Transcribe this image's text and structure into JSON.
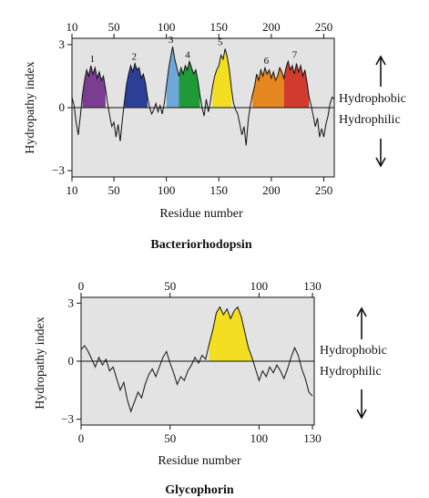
{
  "chart_data": [
    {
      "type": "area",
      "title": "Bacteriorhodopsin",
      "xlabel": "Residue number",
      "ylabel": "Hydropathy index",
      "xlim": [
        10,
        260
      ],
      "ylim": [
        -3.3,
        3.3
      ],
      "x_ticks": [
        10,
        50,
        100,
        150,
        200,
        250
      ],
      "y_ticks": [
        {
          "value": 3,
          "label": "3"
        },
        {
          "value": 0,
          "label": "0"
        },
        {
          "value": -3,
          "label": "−3"
        }
      ],
      "zero_line": true,
      "grid": false,
      "background": "#e3e3e3",
      "side_labels": {
        "above": "Hydrophobic",
        "below": "Hydrophilic"
      },
      "profile": [
        [
          10,
          0.5
        ],
        [
          12,
          0.1
        ],
        [
          14,
          -0.7
        ],
        [
          16,
          -1.3
        ],
        [
          18,
          -0.4
        ],
        [
          20,
          0.6
        ],
        [
          22,
          1.3
        ],
        [
          24,
          1.8
        ],
        [
          26,
          1.5
        ],
        [
          28,
          2.0
        ],
        [
          30,
          1.6
        ],
        [
          32,
          1.9
        ],
        [
          34,
          1.4
        ],
        [
          36,
          1.7
        ],
        [
          38,
          1.3
        ],
        [
          40,
          1.5
        ],
        [
          42,
          0.9
        ],
        [
          44,
          0.2
        ],
        [
          46,
          -0.4
        ],
        [
          48,
          -0.9
        ],
        [
          50,
          -0.7
        ],
        [
          52,
          -1.4
        ],
        [
          54,
          -0.8
        ],
        [
          56,
          -1.6
        ],
        [
          58,
          -0.6
        ],
        [
          60,
          0.3
        ],
        [
          62,
          1.1
        ],
        [
          64,
          1.6
        ],
        [
          66,
          2.0
        ],
        [
          68,
          1.7
        ],
        [
          70,
          2.1
        ],
        [
          72,
          1.8
        ],
        [
          74,
          1.9
        ],
        [
          76,
          1.4
        ],
        [
          78,
          1.6
        ],
        [
          80,
          1.2
        ],
        [
          82,
          0.5
        ],
        [
          84,
          0.0
        ],
        [
          86,
          -0.3
        ],
        [
          88,
          -0.1
        ],
        [
          90,
          0.2
        ],
        [
          92,
          -0.2
        ],
        [
          94,
          0.1
        ],
        [
          96,
          -0.3
        ],
        [
          98,
          0.2
        ],
        [
          100,
          1.0
        ],
        [
          102,
          1.8
        ],
        [
          104,
          2.4
        ],
        [
          106,
          2.9
        ],
        [
          108,
          2.3
        ],
        [
          110,
          1.9
        ],
        [
          112,
          1.5
        ],
        [
          114,
          1.9
        ],
        [
          116,
          1.6
        ],
        [
          118,
          2.0
        ],
        [
          120,
          1.8
        ],
        [
          122,
          2.2
        ],
        [
          124,
          1.9
        ],
        [
          126,
          1.6
        ],
        [
          128,
          1.8
        ],
        [
          130,
          1.3
        ],
        [
          132,
          0.6
        ],
        [
          134,
          0.0
        ],
        [
          136,
          -0.4
        ],
        [
          138,
          0.4
        ],
        [
          140,
          -0.2
        ],
        [
          142,
          0.3
        ],
        [
          144,
          1.0
        ],
        [
          146,
          1.5
        ],
        [
          148,
          1.8
        ],
        [
          150,
          2.0
        ],
        [
          152,
          2.5
        ],
        [
          154,
          2.3
        ],
        [
          156,
          2.8
        ],
        [
          158,
          2.4
        ],
        [
          160,
          1.8
        ],
        [
          162,
          0.9
        ],
        [
          164,
          0.2
        ],
        [
          166,
          -0.1
        ],
        [
          168,
          -0.3
        ],
        [
          170,
          -0.8
        ],
        [
          172,
          -1.3
        ],
        [
          174,
          -0.9
        ],
        [
          176,
          -1.8
        ],
        [
          178,
          -0.6
        ],
        [
          180,
          0.1
        ],
        [
          182,
          0.6
        ],
        [
          184,
          1.0
        ],
        [
          186,
          1.6
        ],
        [
          188,
          1.3
        ],
        [
          190,
          1.8
        ],
        [
          192,
          1.5
        ],
        [
          194,
          1.9
        ],
        [
          196,
          1.6
        ],
        [
          198,
          1.8
        ],
        [
          200,
          1.4
        ],
        [
          202,
          1.7
        ],
        [
          204,
          1.3
        ],
        [
          206,
          1.5
        ],
        [
          208,
          1.9
        ],
        [
          210,
          1.7
        ],
        [
          212,
          1.4
        ],
        [
          214,
          1.9
        ],
        [
          216,
          2.2
        ],
        [
          218,
          1.8
        ],
        [
          220,
          2.0
        ],
        [
          222,
          1.6
        ],
        [
          224,
          2.1
        ],
        [
          226,
          1.7
        ],
        [
          228,
          2.0
        ],
        [
          230,
          1.5
        ],
        [
          232,
          1.8
        ],
        [
          234,
          1.2
        ],
        [
          236,
          0.5
        ],
        [
          238,
          0.1
        ],
        [
          240,
          -0.4
        ],
        [
          242,
          -0.9
        ],
        [
          244,
          -0.5
        ],
        [
          246,
          -1.4
        ],
        [
          248,
          -1.0
        ],
        [
          250,
          -1.4
        ],
        [
          252,
          -0.8
        ],
        [
          254,
          -0.4
        ],
        [
          256,
          0.2
        ],
        [
          258,
          0.5
        ],
        [
          260,
          0.4
        ]
      ],
      "segments": [
        {
          "label": "1",
          "start": 20,
          "end": 42,
          "color": "#7a3d91"
        },
        {
          "label": "2",
          "start": 60,
          "end": 82,
          "color": "#2b3f98"
        },
        {
          "label": "3",
          "start": 100,
          "end": 112,
          "color": "#6fa8d8"
        },
        {
          "label": "4",
          "start": 112,
          "end": 132,
          "color": "#1e9a39"
        },
        {
          "label": "5",
          "start": 144,
          "end": 162,
          "color": "#f3df21"
        },
        {
          "label": "6",
          "start": 182,
          "end": 212,
          "color": "#e6861e"
        },
        {
          "label": "7",
          "start": 212,
          "end": 236,
          "color": "#d33a2e"
        }
      ]
    },
    {
      "type": "area",
      "title": "Glycophorin",
      "xlabel": "Residue number",
      "ylabel": "Hydropathy index",
      "xlim": [
        0,
        131
      ],
      "ylim": [
        -3.3,
        3.3
      ],
      "x_ticks": [
        0,
        50,
        100,
        130
      ],
      "y_ticks": [
        {
          "value": 3,
          "label": "3"
        },
        {
          "value": 0,
          "label": "0"
        },
        {
          "value": -3,
          "label": "−3"
        }
      ],
      "zero_line": true,
      "grid": false,
      "background": "#e3e3e3",
      "side_labels": {
        "above": "Hydrophobic",
        "below": "Hydrophilic"
      },
      "profile": [
        [
          0,
          0.6
        ],
        [
          2,
          0.8
        ],
        [
          4,
          0.5
        ],
        [
          6,
          0.1
        ],
        [
          8,
          -0.3
        ],
        [
          10,
          0.2
        ],
        [
          12,
          -0.2
        ],
        [
          14,
          0.1
        ],
        [
          16,
          -0.5
        ],
        [
          18,
          -0.3
        ],
        [
          20,
          -0.9
        ],
        [
          22,
          -1.5
        ],
        [
          24,
          -1.1
        ],
        [
          26,
          -2.0
        ],
        [
          28,
          -2.6
        ],
        [
          30,
          -2.1
        ],
        [
          32,
          -1.6
        ],
        [
          34,
          -1.9
        ],
        [
          36,
          -1.2
        ],
        [
          38,
          -0.7
        ],
        [
          40,
          -0.4
        ],
        [
          42,
          -0.8
        ],
        [
          44,
          -0.3
        ],
        [
          46,
          0.2
        ],
        [
          48,
          0.5
        ],
        [
          50,
          -0.1
        ],
        [
          52,
          -0.6
        ],
        [
          54,
          -1.2
        ],
        [
          56,
          -0.8
        ],
        [
          58,
          -1.0
        ],
        [
          60,
          -0.5
        ],
        [
          62,
          -0.2
        ],
        [
          64,
          0.2
        ],
        [
          66,
          -0.1
        ],
        [
          68,
          0.3
        ],
        [
          70,
          0.1
        ],
        [
          72,
          0.9
        ],
        [
          74,
          1.6
        ],
        [
          76,
          2.5
        ],
        [
          78,
          2.8
        ],
        [
          80,
          2.4
        ],
        [
          82,
          2.7
        ],
        [
          84,
          2.2
        ],
        [
          86,
          2.6
        ],
        [
          88,
          2.8
        ],
        [
          90,
          2.3
        ],
        [
          92,
          1.5
        ],
        [
          94,
          0.7
        ],
        [
          96,
          0.2
        ],
        [
          98,
          -0.4
        ],
        [
          100,
          -1.0
        ],
        [
          102,
          -0.5
        ],
        [
          104,
          -0.8
        ],
        [
          106,
          -0.3
        ],
        [
          108,
          -0.6
        ],
        [
          110,
          -0.2
        ],
        [
          112,
          -0.5
        ],
        [
          114,
          -0.9
        ],
        [
          116,
          -0.4
        ],
        [
          118,
          0.2
        ],
        [
          120,
          0.7
        ],
        [
          122,
          0.3
        ],
        [
          124,
          -0.4
        ],
        [
          126,
          -0.9
        ],
        [
          128,
          -1.6
        ],
        [
          130,
          -1.8
        ]
      ],
      "segments": [
        {
          "label": "",
          "start": 72,
          "end": 96,
          "color": "#f3df21"
        }
      ]
    }
  ]
}
